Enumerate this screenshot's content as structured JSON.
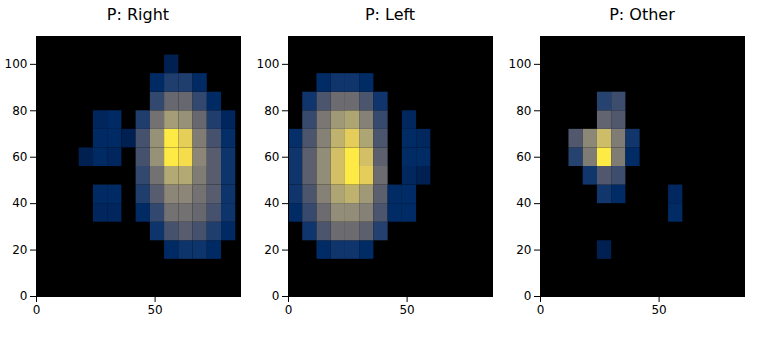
{
  "chart_data": [
    {
      "type": "heatmap",
      "title": "P: Right",
      "xlim": [
        0,
        86
      ],
      "ylim": [
        0,
        112
      ],
      "xticks": [
        0,
        50
      ],
      "yticks": [
        0,
        20,
        40,
        60,
        80,
        100
      ],
      "grid": false,
      "x_bins": [
        0,
        6,
        12,
        18,
        24,
        30,
        36,
        42,
        48,
        54,
        60,
        66,
        72,
        78,
        84
      ],
      "y_bins": [
        0,
        8,
        16,
        24,
        32,
        40,
        48,
        56,
        64,
        72,
        80,
        88,
        96,
        104,
        112
      ],
      "cells": [
        [
          null,
          null,
          null,
          null,
          null,
          null,
          null,
          null,
          null,
          null,
          null,
          null,
          null,
          null
        ],
        [
          null,
          null,
          null,
          null,
          null,
          null,
          null,
          null,
          null,
          null,
          null,
          null,
          null,
          null
        ],
        [
          null,
          null,
          null,
          null,
          null,
          null,
          null,
          null,
          null,
          0.1,
          0.15,
          0.15,
          0.1,
          null
        ],
        [
          null,
          null,
          null,
          null,
          null,
          null,
          null,
          null,
          0.15,
          0.3,
          0.35,
          0.3,
          0.2,
          0.1
        ],
        [
          null,
          null,
          null,
          null,
          0.08,
          0.08,
          null,
          0.1,
          0.25,
          0.45,
          0.45,
          0.4,
          0.3,
          0.15
        ],
        [
          null,
          null,
          null,
          null,
          0.1,
          0.1,
          null,
          0.2,
          0.35,
          0.55,
          0.55,
          0.45,
          0.35,
          0.15
        ],
        [
          null,
          null,
          null,
          null,
          null,
          null,
          null,
          0.25,
          0.45,
          0.7,
          0.7,
          0.5,
          0.35,
          0.15
        ],
        [
          null,
          null,
          null,
          0.05,
          0.1,
          0.08,
          null,
          0.3,
          0.6,
          0.95,
          0.9,
          0.55,
          0.35,
          0.15
        ],
        [
          null,
          null,
          null,
          null,
          0.1,
          0.1,
          0.05,
          0.3,
          0.6,
          0.95,
          0.85,
          0.5,
          0.3,
          0.12
        ],
        [
          null,
          null,
          null,
          null,
          0.08,
          0.1,
          null,
          0.2,
          0.45,
          0.65,
          0.6,
          0.4,
          0.2,
          0.08
        ],
        [
          null,
          null,
          null,
          null,
          null,
          null,
          null,
          null,
          0.25,
          0.4,
          0.4,
          0.25,
          0.1,
          null
        ],
        [
          null,
          null,
          null,
          null,
          null,
          null,
          null,
          null,
          0.1,
          0.2,
          0.2,
          0.1,
          null,
          null
        ],
        [
          null,
          null,
          null,
          null,
          null,
          null,
          null,
          null,
          null,
          0.05,
          null,
          null,
          null,
          null
        ],
        [
          null,
          null,
          null,
          null,
          null,
          null,
          null,
          null,
          null,
          null,
          null,
          null,
          null,
          null
        ]
      ]
    },
    {
      "type": "heatmap",
      "title": "P: Left",
      "xlim": [
        0,
        86
      ],
      "ylim": [
        0,
        112
      ],
      "xticks": [
        0,
        50
      ],
      "yticks": [
        0,
        20,
        40,
        60,
        80,
        100
      ],
      "grid": false,
      "x_bins": [
        0,
        6,
        12,
        18,
        24,
        30,
        36,
        42,
        48,
        54,
        60,
        66,
        72,
        78,
        84
      ],
      "y_bins": [
        0,
        8,
        16,
        24,
        32,
        40,
        48,
        56,
        64,
        72,
        80,
        88,
        96,
        104,
        112
      ],
      "cells": [
        [
          null,
          null,
          null,
          null,
          null,
          null,
          null,
          null,
          null,
          null,
          null,
          null,
          null,
          null
        ],
        [
          null,
          null,
          null,
          null,
          null,
          null,
          null,
          null,
          null,
          null,
          null,
          null,
          null,
          null
        ],
        [
          null,
          null,
          0.1,
          0.15,
          0.15,
          0.1,
          null,
          null,
          null,
          null,
          null,
          null,
          null,
          null
        ],
        [
          null,
          0.15,
          0.3,
          0.4,
          0.4,
          0.35,
          0.2,
          null,
          null,
          null,
          null,
          null,
          null,
          null
        ],
        [
          0.1,
          0.25,
          0.4,
          0.55,
          0.55,
          0.5,
          0.3,
          0.1,
          0.1,
          null,
          null,
          null,
          null,
          null
        ],
        [
          0.15,
          0.3,
          0.5,
          0.65,
          0.7,
          0.6,
          0.35,
          0.1,
          0.1,
          null,
          null,
          null,
          null,
          null
        ],
        [
          0.15,
          0.35,
          0.55,
          0.75,
          0.9,
          0.8,
          0.4,
          null,
          0.08,
          0.05,
          null,
          null,
          null,
          null
        ],
        [
          0.15,
          0.35,
          0.55,
          0.75,
          0.9,
          0.75,
          0.35,
          null,
          0.1,
          0.1,
          null,
          null,
          null,
          null
        ],
        [
          0.12,
          0.3,
          0.5,
          0.7,
          0.8,
          0.65,
          0.3,
          null,
          0.1,
          0.08,
          null,
          null,
          null,
          null
        ],
        [
          null,
          0.25,
          0.45,
          0.6,
          0.65,
          0.5,
          0.25,
          null,
          0.08,
          null,
          null,
          null,
          null,
          null
        ],
        [
          null,
          0.15,
          0.3,
          0.4,
          0.4,
          0.3,
          0.15,
          null,
          null,
          null,
          null,
          null,
          null,
          null
        ],
        [
          null,
          null,
          0.1,
          0.15,
          0.15,
          0.1,
          null,
          null,
          null,
          null,
          null,
          null,
          null,
          null
        ],
        [
          null,
          null,
          null,
          null,
          null,
          null,
          null,
          null,
          null,
          null,
          null,
          null,
          null,
          null
        ],
        [
          null,
          null,
          null,
          null,
          null,
          null,
          null,
          null,
          null,
          null,
          null,
          null,
          null,
          null
        ]
      ]
    },
    {
      "type": "heatmap",
      "title": "P: Other",
      "xlim": [
        0,
        86
      ],
      "ylim": [
        0,
        112
      ],
      "xticks": [
        0,
        50
      ],
      "yticks": [
        0,
        20,
        40,
        60,
        80,
        100
      ],
      "grid": false,
      "x_bins": [
        0,
        6,
        12,
        18,
        24,
        30,
        36,
        42,
        48,
        54,
        60,
        66,
        72,
        78,
        84
      ],
      "y_bins": [
        0,
        8,
        16,
        24,
        32,
        40,
        48,
        56,
        64,
        72,
        80,
        88,
        96,
        104,
        112
      ],
      "cells": [
        [
          null,
          null,
          null,
          null,
          null,
          null,
          null,
          null,
          null,
          null,
          null,
          null,
          null,
          null
        ],
        [
          null,
          null,
          null,
          null,
          null,
          null,
          null,
          null,
          null,
          null,
          null,
          null,
          null,
          null
        ],
        [
          null,
          null,
          null,
          null,
          0.05,
          null,
          null,
          null,
          null,
          null,
          null,
          null,
          null,
          null
        ],
        [
          null,
          null,
          null,
          null,
          null,
          null,
          null,
          null,
          null,
          null,
          null,
          null,
          null,
          null
        ],
        [
          null,
          null,
          null,
          null,
          null,
          null,
          null,
          null,
          null,
          0.1,
          null,
          null,
          null,
          null
        ],
        [
          null,
          null,
          null,
          null,
          0.15,
          0.1,
          null,
          null,
          null,
          0.08,
          null,
          null,
          null,
          null
        ],
        [
          null,
          null,
          null,
          0.15,
          0.3,
          0.25,
          null,
          null,
          null,
          null,
          null,
          null,
          null,
          null
        ],
        [
          null,
          null,
          0.2,
          0.45,
          0.85,
          0.45,
          0.1,
          null,
          null,
          null,
          null,
          null,
          null,
          null
        ],
        [
          null,
          null,
          0.3,
          0.5,
          0.7,
          0.45,
          0.15,
          null,
          null,
          null,
          null,
          null,
          null,
          null
        ],
        [
          null,
          null,
          null,
          null,
          0.35,
          0.3,
          null,
          null,
          null,
          null,
          null,
          null,
          null,
          null
        ],
        [
          null,
          null,
          null,
          null,
          0.2,
          0.25,
          null,
          null,
          null,
          null,
          null,
          null,
          null,
          null
        ],
        [
          null,
          null,
          null,
          null,
          null,
          null,
          null,
          null,
          null,
          null,
          null,
          null,
          null,
          null
        ],
        [
          null,
          null,
          null,
          null,
          null,
          null,
          null,
          null,
          null,
          null,
          null,
          null,
          null,
          null
        ],
        [
          null,
          null,
          null,
          null,
          null,
          null,
          null,
          null,
          null,
          null,
          null,
          null,
          null,
          null
        ]
      ]
    }
  ]
}
